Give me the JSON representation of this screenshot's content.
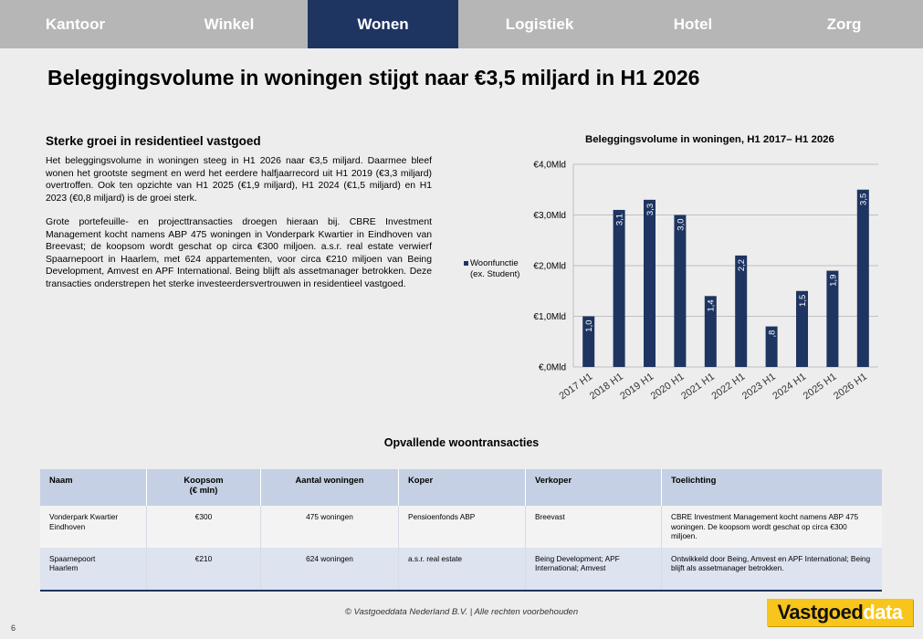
{
  "nav": {
    "tabs": [
      {
        "label": "Kantoor",
        "active": false
      },
      {
        "label": "Winkel",
        "active": false
      },
      {
        "label": "Wonen",
        "active": true
      },
      {
        "label": "Logistiek",
        "active": false
      },
      {
        "label": "Hotel",
        "active": false
      },
      {
        "label": "Zorg",
        "active": false
      }
    ]
  },
  "page": {
    "title": "Beleggingsvolume in woningen stijgt naar €3,5 miljard in H1 2026",
    "subtitle": "Sterke groei in residentieel vastgoed",
    "paragraphs": [
      "Het beleggingsvolume in woningen steeg in H1 2026 naar €3,5 miljard. Daarmee bleef wonen het grootste segment en werd het eerdere halfjaarrecord uit H1 2019 (€3,3 miljard) overtroffen. Ook ten opzichte van H1 2025 (€1,9 miljard), H1 2024 (€1,5 miljard) en H1 2023 (€0,8 miljard) is de groei sterk.",
      "Grote portefeuille- en projecttransacties droegen hieraan bij. CBRE Investment Management kocht namens ABP 475 woningen in Vonderpark Kwartier in Eindhoven van Breevast; de koopsom wordt geschat op circa €300 miljoen. a.s.r. real estate verwierf Spaarnepoort in Haarlem, met 624 appartementen, voor circa €210 miljoen van Being Development, Amvest en APF International. Being blijft als assetmanager betrokken. Deze transacties onderstrepen het sterke investeerdersvertrouwen in residentieel vastgoed."
    ],
    "footer": "© Vastgoeddata Nederland B.V. | Alle rechten voorbehouden",
    "page_number": "6",
    "logo": {
      "part1": "Vastgoed",
      "part2": "data"
    }
  },
  "chart_data": {
    "type": "bar",
    "title": "Beleggingsvolume in woningen, H1 2017– H1 2026",
    "categories": [
      "2017 H1",
      "2018 H1",
      "2019 H1",
      "2020 H1",
      "2021 H1",
      "2022 H1",
      "2023 H1",
      "2024 H1",
      "2025 H1",
      "2026 H1"
    ],
    "series": [
      {
        "name": "Woonfunctie (ex. Student)",
        "values": [
          1.0,
          3.1,
          3.3,
          3.0,
          1.4,
          2.2,
          0.8,
          1.5,
          1.9,
          3.5
        ]
      }
    ],
    "data_labels": [
      "1,0",
      "3,1",
      "3,3",
      "3,0",
      "1,4",
      "2,2",
      ",8",
      "1,5",
      "1,9",
      "3,5"
    ],
    "legend_lines": [
      "Woonfunctie",
      "(ex. Student)"
    ],
    "y_ticks": [
      0,
      1,
      2,
      3,
      4
    ],
    "y_tick_labels": [
      "€,0Mld",
      "€1,0Mld",
      "€2,0Mld",
      "€3,0Mld",
      "€4,0Mld"
    ],
    "ylim": [
      0,
      4
    ],
    "grid": true,
    "legend_position": "left",
    "bar_color": "#1e3461"
  },
  "table": {
    "title": "Opvallende woontransacties",
    "headers": [
      {
        "line1": "Naam",
        "line2": ""
      },
      {
        "line1": "Koopsom",
        "line2": "(€ mln)"
      },
      {
        "line1": "Aantal woningen",
        "line2": ""
      },
      {
        "line1": "Koper",
        "line2": ""
      },
      {
        "line1": "Verkoper",
        "line2": ""
      },
      {
        "line1": "Toelichting",
        "line2": ""
      }
    ],
    "rows": [
      {
        "naam_1": "Vonderpark Kwartier",
        "naam_2": "Eindhoven",
        "koopsom": "€300",
        "aantal": "475 woningen",
        "koper": "Pensioenfonds ABP",
        "verkoper": "Breevast",
        "toelichting": "CBRE Investment Management kocht namens ABP 475 woningen. De koopsom wordt geschat op circa €300 miljoen."
      },
      {
        "naam_1": "Spaarnepoort",
        "naam_2": "Haarlem",
        "koopsom": "€210",
        "aantal": "624 woningen",
        "koper": "a.s.r. real estate",
        "verkoper": "Being Development; APF International; Amvest",
        "toelichting": "Ontwikkeld door Being, Amvest en APF International; Being blijft als assetmanager betrokken."
      }
    ]
  }
}
